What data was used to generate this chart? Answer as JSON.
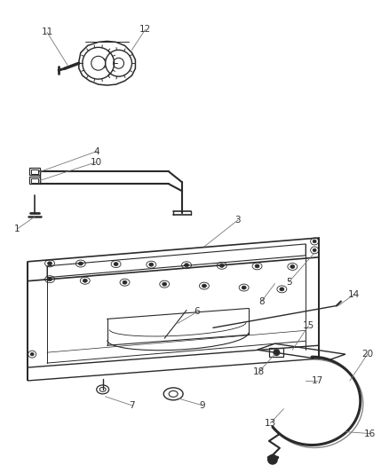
{
  "background_color": "#ffffff",
  "line_color": "#2a2a2a",
  "label_color": "#333333",
  "callout_line_color": "#777777",
  "fig_width": 4.38,
  "fig_height": 5.33,
  "dpi": 100
}
